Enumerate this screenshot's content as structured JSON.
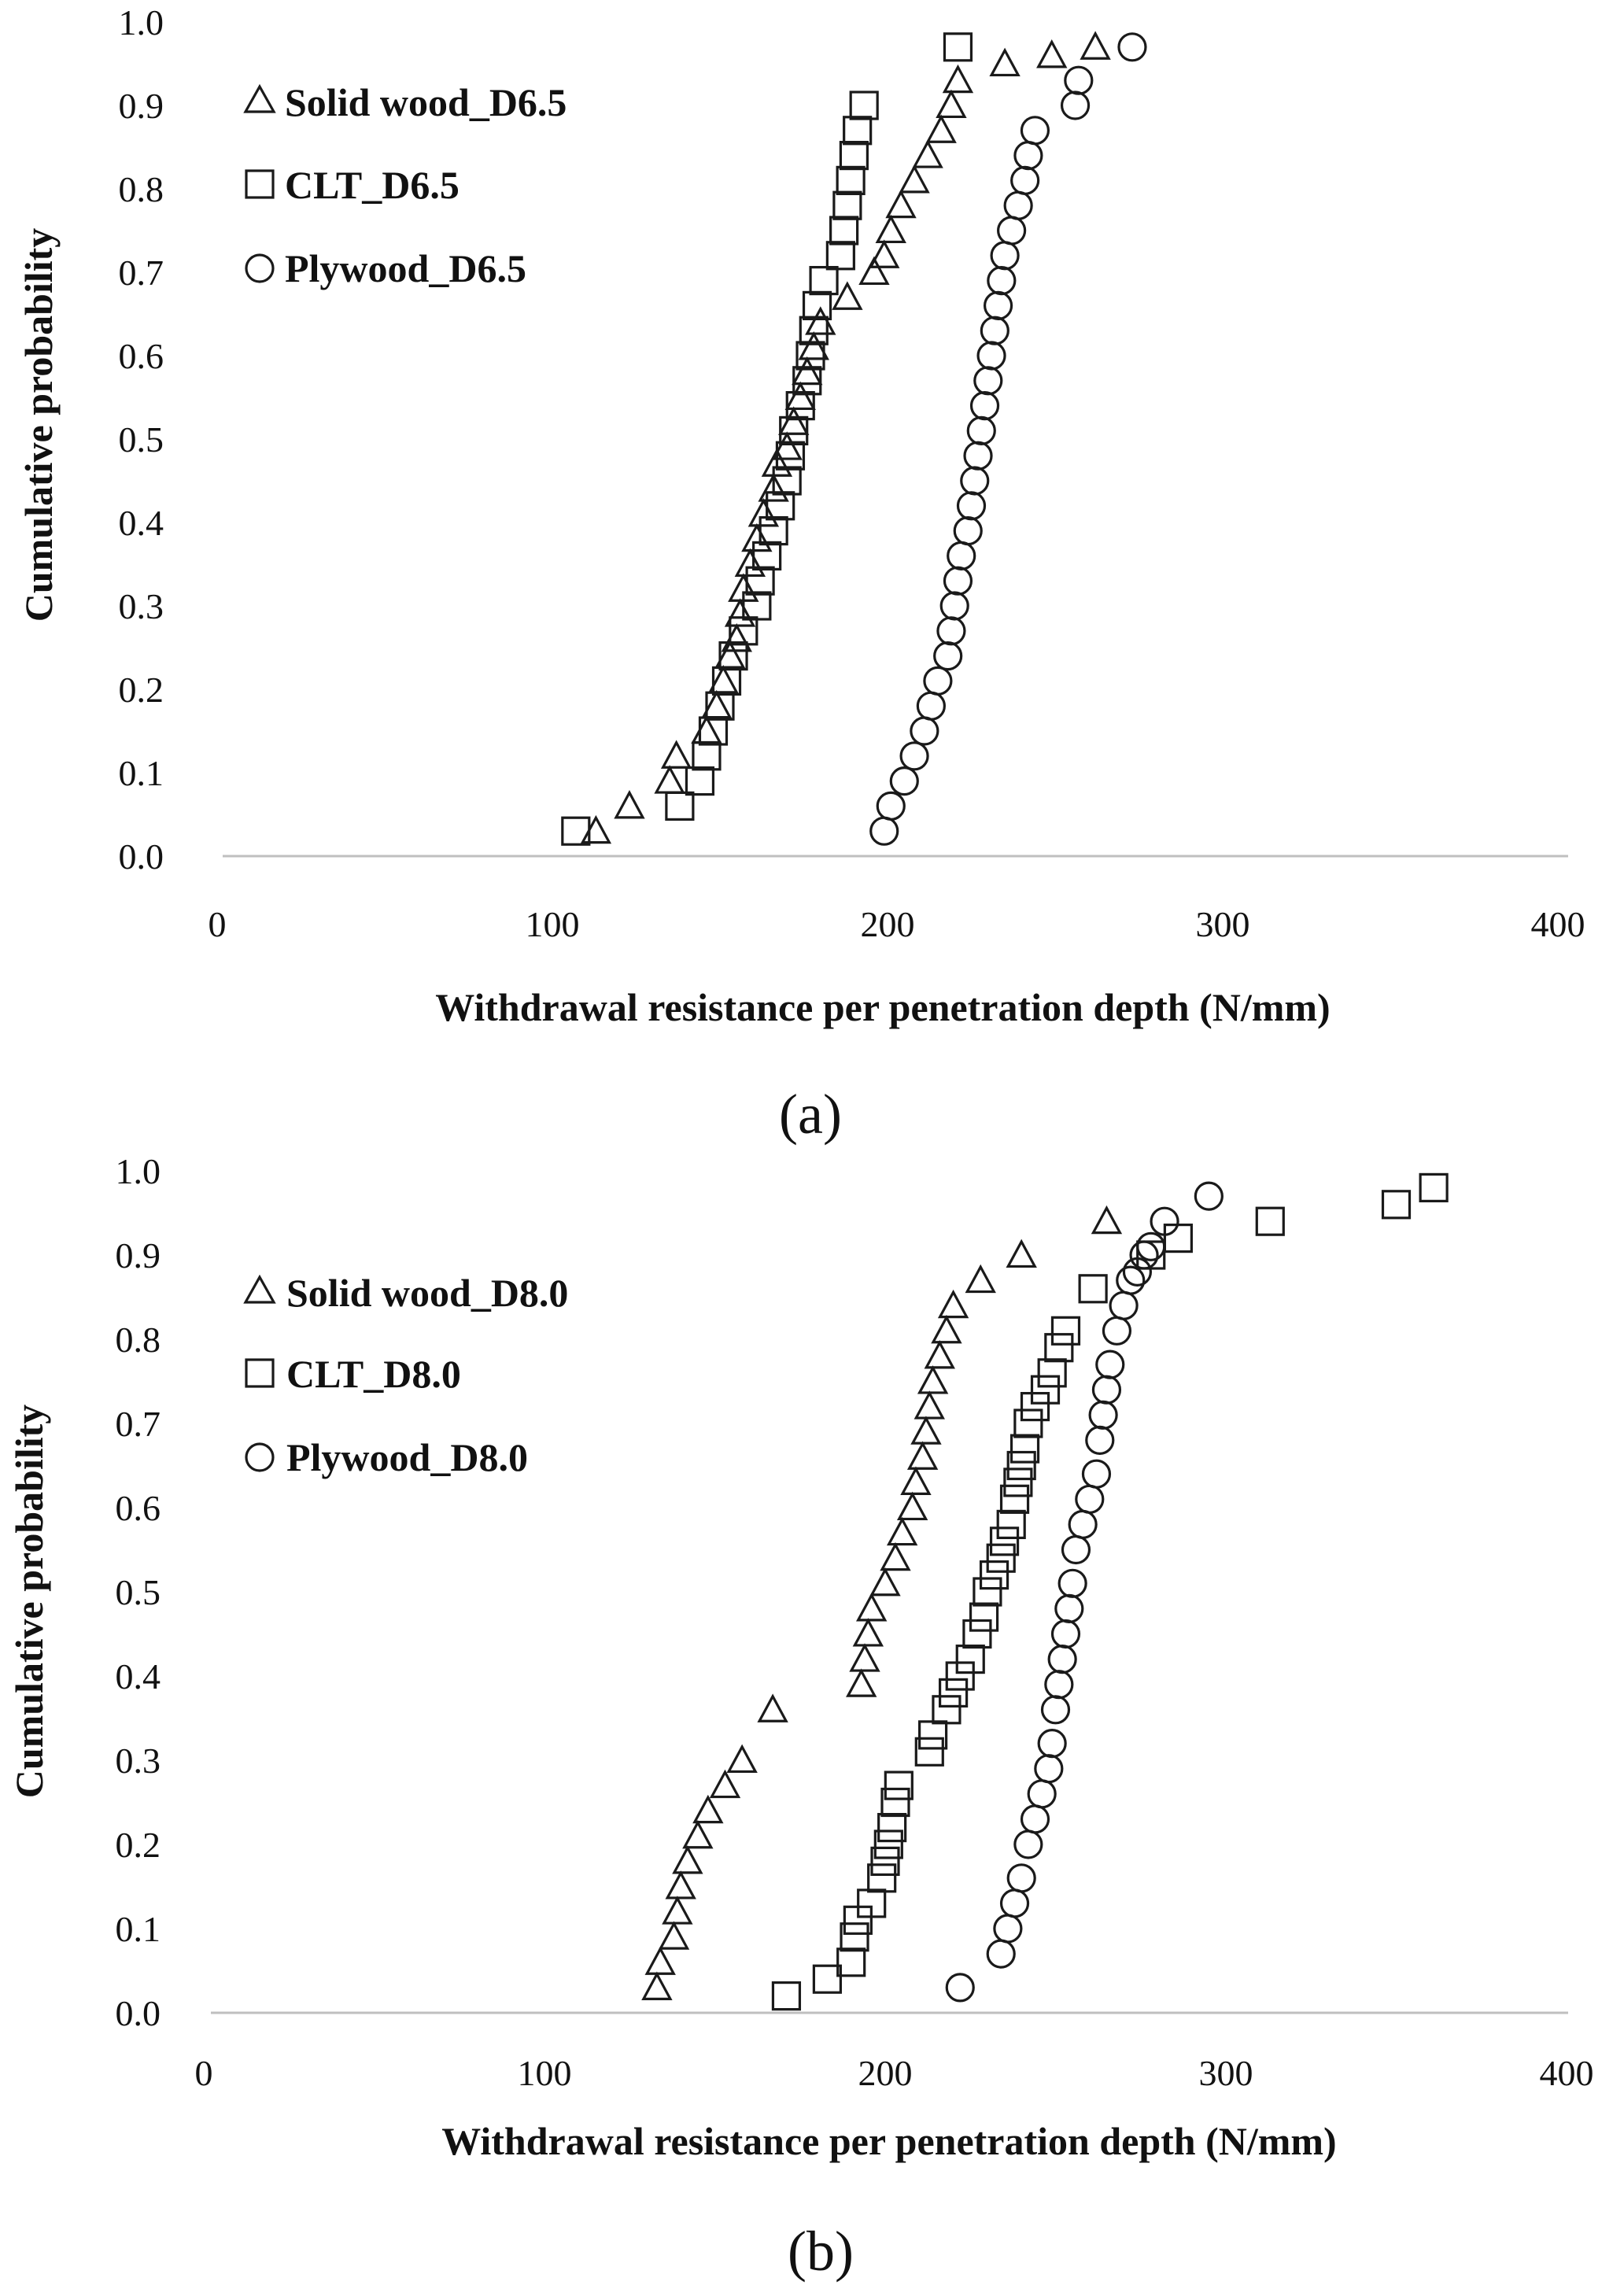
{
  "figure": {
    "panel_labels": [
      "(a)",
      "(b)"
    ]
  },
  "chart_data": [
    {
      "type": "scatter",
      "panel_label": "(a)",
      "title": "",
      "xlabel": "Withdrawal resistance per penetration depth  (N/mm)",
      "ylabel": "Cumulative probability",
      "xlim": [
        0,
        400
      ],
      "ylim": [
        0,
        1.0
      ],
      "xticks": [
        "0",
        "100",
        "200",
        "300",
        "400"
      ],
      "yticks": [
        "0.0",
        "0.1",
        "0.2",
        "0.3",
        "0.4",
        "0.5",
        "0.6",
        "0.7",
        "0.8",
        "0.9",
        "1.0"
      ],
      "grid": false,
      "legend_position": "top-left",
      "series": [
        {
          "name": "Solid wood_D6.5",
          "marker": "triangle",
          "x": [
            113,
            123,
            135,
            137,
            146,
            149,
            151,
            153,
            155,
            156,
            157,
            159,
            161,
            163,
            166,
            167,
            170,
            172,
            174,
            176,
            178,
            180,
            188,
            196,
            199,
            201,
            204,
            208,
            212,
            216,
            219,
            221,
            235,
            249,
            262
          ],
          "y": [
            0.03,
            0.06,
            0.09,
            0.12,
            0.15,
            0.18,
            0.21,
            0.24,
            0.26,
            0.29,
            0.32,
            0.35,
            0.38,
            0.41,
            0.44,
            0.47,
            0.49,
            0.52,
            0.55,
            0.58,
            0.61,
            0.64,
            0.67,
            0.7,
            0.72,
            0.75,
            0.78,
            0.81,
            0.84,
            0.87,
            0.9,
            0.93,
            0.95,
            0.96,
            0.97
          ]
        },
        {
          "name": "CLT_D6.5",
          "marker": "square",
          "x": [
            107,
            138,
            144,
            146,
            148,
            150,
            152,
            154,
            157,
            161,
            162,
            164,
            166,
            168,
            170,
            171,
            172,
            174,
            176,
            177,
            178,
            179,
            181,
            186,
            187,
            188,
            189,
            190,
            191,
            193,
            221
          ],
          "y": [
            0.03,
            0.06,
            0.09,
            0.12,
            0.15,
            0.18,
            0.21,
            0.24,
            0.27,
            0.3,
            0.33,
            0.36,
            0.39,
            0.42,
            0.45,
            0.48,
            0.51,
            0.54,
            0.57,
            0.6,
            0.63,
            0.66,
            0.69,
            0.72,
            0.75,
            0.78,
            0.81,
            0.84,
            0.87,
            0.9,
            0.97
          ]
        },
        {
          "name": "Plywood_D6.5",
          "marker": "circle",
          "x": [
            199,
            201,
            205,
            208,
            211,
            213,
            215,
            218,
            219,
            220,
            221,
            222,
            224,
            225,
            226,
            227,
            228,
            229,
            230,
            231,
            232,
            233,
            234,
            235,
            237,
            239,
            241,
            242,
            244,
            256,
            257,
            273
          ],
          "y": [
            0.03,
            0.06,
            0.09,
            0.12,
            0.15,
            0.18,
            0.21,
            0.24,
            0.27,
            0.3,
            0.33,
            0.36,
            0.39,
            0.42,
            0.45,
            0.48,
            0.51,
            0.54,
            0.57,
            0.6,
            0.63,
            0.66,
            0.69,
            0.72,
            0.75,
            0.78,
            0.81,
            0.84,
            0.87,
            0.9,
            0.93,
            0.97
          ]
        }
      ]
    },
    {
      "type": "scatter",
      "panel_label": "(b)",
      "title": "",
      "xlabel": "Withdrawal resistance per penetration depth  (N/mm)",
      "ylabel": "Cumulative probability",
      "xlim": [
        0,
        400
      ],
      "ylim": [
        0,
        1.0
      ],
      "xticks": [
        "0",
        "100",
        "200",
        "300",
        "400"
      ],
      "yticks": [
        "0.0",
        "0.1",
        "0.2",
        "0.3",
        "0.4",
        "0.5",
        "0.6",
        "0.7",
        "0.8",
        "0.9",
        "1.0"
      ],
      "grid": false,
      "legend_position": "top-left",
      "series": [
        {
          "name": "Solid wood_D8.0",
          "marker": "triangle",
          "x": [
            133,
            134,
            138,
            139,
            140,
            142,
            145,
            148,
            153,
            158,
            167,
            193,
            194,
            195,
            196,
            200,
            203,
            205,
            208,
            209,
            211,
            212,
            213,
            214,
            216,
            218,
            220,
            228,
            240,
            265
          ],
          "y": [
            0.03,
            0.06,
            0.09,
            0.12,
            0.15,
            0.18,
            0.21,
            0.24,
            0.27,
            0.3,
            0.36,
            0.39,
            0.42,
            0.45,
            0.48,
            0.51,
            0.54,
            0.57,
            0.6,
            0.63,
            0.66,
            0.69,
            0.72,
            0.75,
            0.78,
            0.81,
            0.84,
            0.87,
            0.9,
            0.94
          ]
        },
        {
          "name": "CLT_D8.0",
          "marker": "square",
          "x": [
            171,
            183,
            190,
            191,
            192,
            196,
            199,
            200,
            201,
            202,
            203,
            204,
            213,
            214,
            218,
            220,
            222,
            225,
            227,
            229,
            230,
            232,
            234,
            235,
            237,
            238,
            239,
            240,
            241,
            242,
            244,
            247,
            249,
            251,
            253,
            261,
            278,
            286,
            313,
            350,
            361
          ],
          "y": [
            0.02,
            0.04,
            0.06,
            0.09,
            0.11,
            0.13,
            0.16,
            0.18,
            0.2,
            0.22,
            0.25,
            0.27,
            0.31,
            0.33,
            0.36,
            0.38,
            0.4,
            0.42,
            0.45,
            0.47,
            0.5,
            0.52,
            0.54,
            0.56,
            0.58,
            0.61,
            0.63,
            0.65,
            0.67,
            0.7,
            0.72,
            0.74,
            0.76,
            0.79,
            0.81,
            0.86,
            0.9,
            0.92,
            0.94,
            0.96,
            0.98
          ]
        },
        {
          "name": "Plywood_D8.0",
          "marker": "circle",
          "x": [
            222,
            234,
            236,
            238,
            240,
            242,
            244,
            246,
            248,
            249,
            250,
            251,
            252,
            253,
            254,
            255,
            256,
            258,
            260,
            262,
            263,
            264,
            265,
            266,
            268,
            270,
            272,
            274,
            276,
            278,
            282,
            295
          ],
          "y": [
            0.03,
            0.07,
            0.1,
            0.13,
            0.16,
            0.2,
            0.23,
            0.26,
            0.29,
            0.32,
            0.36,
            0.39,
            0.42,
            0.45,
            0.48,
            0.51,
            0.55,
            0.58,
            0.61,
            0.64,
            0.68,
            0.71,
            0.74,
            0.77,
            0.81,
            0.84,
            0.87,
            0.88,
            0.9,
            0.91,
            0.94,
            0.97
          ]
        }
      ]
    }
  ]
}
